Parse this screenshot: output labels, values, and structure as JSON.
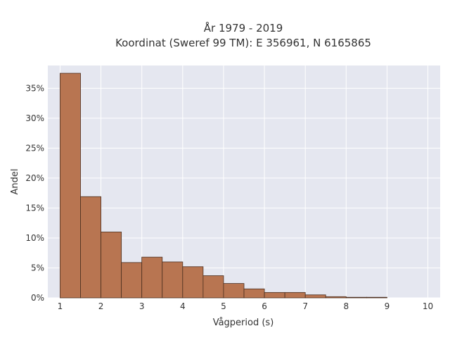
{
  "chart_data": {
    "type": "bar",
    "title_lines": [
      "År 1979 - 2019",
      "Koordinat (Sweref 99 TM): E 356961, N 6165865"
    ],
    "xlabel": "Vågperiod (s)",
    "ylabel": "Andel",
    "xlim": [
      0.7,
      10.3
    ],
    "ylim": [
      0,
      0.388
    ],
    "x_ticks": [
      1,
      2,
      3,
      4,
      5,
      6,
      7,
      8,
      9,
      10
    ],
    "x_tick_labels": [
      "1",
      "2",
      "3",
      "4",
      "5",
      "6",
      "7",
      "8",
      "9",
      "10"
    ],
    "y_ticks": [
      0,
      0.05,
      0.1,
      0.15,
      0.2,
      0.25,
      0.3,
      0.35
    ],
    "y_tick_labels": [
      "0%",
      "5%",
      "10%",
      "15%",
      "20%",
      "25%",
      "30%",
      "35%"
    ],
    "grid": true,
    "bin_width": 0.5,
    "bins": [
      {
        "x_start": 1.0,
        "value": 0.375
      },
      {
        "x_start": 1.5,
        "value": 0.169
      },
      {
        "x_start": 2.0,
        "value": 0.11
      },
      {
        "x_start": 2.5,
        "value": 0.059
      },
      {
        "x_start": 3.0,
        "value": 0.068
      },
      {
        "x_start": 3.5,
        "value": 0.06
      },
      {
        "x_start": 4.0,
        "value": 0.052
      },
      {
        "x_start": 4.5,
        "value": 0.037
      },
      {
        "x_start": 5.0,
        "value": 0.024
      },
      {
        "x_start": 5.5,
        "value": 0.015
      },
      {
        "x_start": 6.0,
        "value": 0.009
      },
      {
        "x_start": 6.5,
        "value": 0.009
      },
      {
        "x_start": 7.0,
        "value": 0.005
      },
      {
        "x_start": 7.5,
        "value": 0.002
      },
      {
        "x_start": 8.0,
        "value": 0.001
      },
      {
        "x_start": 8.5,
        "value": 0.001
      }
    ],
    "colors": {
      "bar_fill": "#b87551",
      "bar_stroke": "#4a2e1e",
      "plot_background": "#e5e7f0",
      "grid": "#ffffff"
    }
  }
}
